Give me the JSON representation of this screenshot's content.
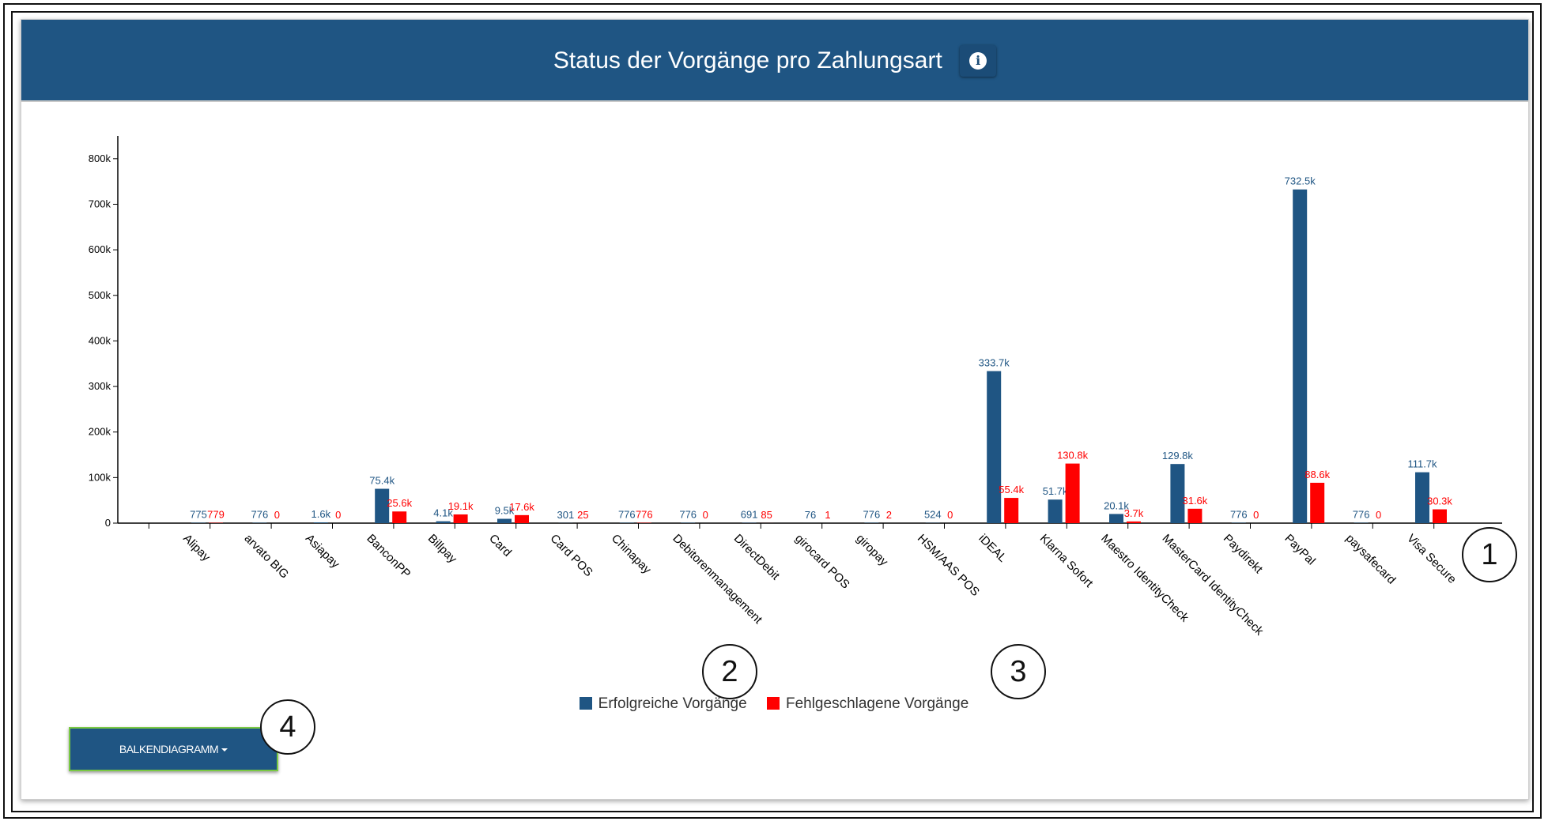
{
  "header": {
    "title": "Status der Vorgänge pro Zahlungsart",
    "info_icon": "info-icon"
  },
  "chart_data": {
    "type": "bar",
    "title": "Status der Vorgänge pro Zahlungsart",
    "ylim": [
      0,
      850000
    ],
    "yticks": [
      0,
      100000,
      200000,
      300000,
      400000,
      500000,
      600000,
      700000,
      800000
    ],
    "ytick_labels": [
      "0",
      "100k",
      "200k",
      "300k",
      "400k",
      "500k",
      "600k",
      "700k",
      "800k"
    ],
    "categories": [
      "Alipay",
      "arvato BIG",
      "Asiapay",
      "BanconPP",
      "Billpay",
      "Card",
      "Card POS",
      "Chinapay",
      "Debitorenmanagement",
      "DirectDebit",
      "girocard POS",
      "giropay",
      "HSM/AAS POS",
      "iDEAL",
      "Klarna Sofort",
      "Maestro IdentityCheck",
      "MasterCard IdentityCheck",
      "Paydirekt",
      "PayPal",
      "paysafecard",
      "Visa Secure"
    ],
    "series": [
      {
        "name": "Erfolgreiche Vorgänge",
        "color": "#1f5583",
        "values": [
          775,
          776,
          1600,
          75400,
          4100,
          9500,
          301,
          776,
          776,
          691,
          76,
          776,
          524,
          333700,
          51700,
          20100,
          129800,
          776,
          732500,
          776,
          111700
        ],
        "labels": [
          "775",
          "776",
          "1.6k",
          "75.4k",
          "4.1k",
          "9.5k",
          "301",
          "776",
          "776",
          "691",
          "76",
          "776",
          "524",
          "333.7k",
          "51.7k",
          "20.1k",
          "129.8k",
          "776",
          "732.5k",
          "776",
          "111.7k"
        ]
      },
      {
        "name": "Fehlgeschlagene Vorgänge",
        "color": "#ff0000",
        "values": [
          779,
          0,
          0,
          25600,
          19100,
          17600,
          25,
          776,
          0,
          85,
          1,
          2,
          0,
          55400,
          130800,
          3700,
          31600,
          0,
          88600,
          0,
          30300
        ],
        "labels": [
          "779",
          "0",
          "0",
          "25.6k",
          "19.1k",
          "17.6k",
          "25",
          "776",
          "0",
          "85",
          "1",
          "2",
          "0",
          "55.4k",
          "130.8k",
          "3.7k",
          "31.6k",
          "0",
          "88.6k",
          "0",
          "30.3k"
        ]
      }
    ],
    "legend_position": "bottom-center"
  },
  "controls": {
    "chart_type_button": "BALKENDIAGRAMM"
  },
  "callouts": [
    "1",
    "2",
    "3",
    "4"
  ]
}
